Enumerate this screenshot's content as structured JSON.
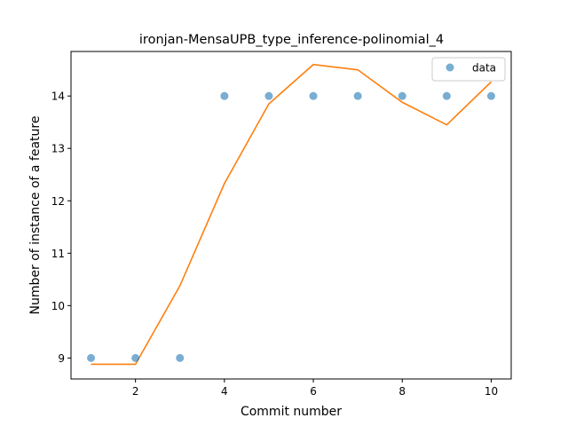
{
  "chart_data": {
    "type": "scatter",
    "title": "ironjan-MensaUPB_type_inference-polinomial_4",
    "xlabel": "Commit number",
    "ylabel": "Number of instance of a feature",
    "xlim": [
      0.55,
      10.45
    ],
    "ylim": [
      8.6,
      14.85
    ],
    "xticks": [
      2,
      4,
      6,
      8,
      10
    ],
    "yticks": [
      9,
      10,
      11,
      12,
      13,
      14
    ],
    "grid": false,
    "legend": "top-right",
    "series": [
      {
        "name": "data",
        "kind": "scatter",
        "color": "#1f77b4",
        "x": [
          1,
          2,
          3,
          4,
          5,
          6,
          7,
          8,
          9,
          10
        ],
        "y": [
          9,
          9,
          9,
          14,
          14,
          14,
          14,
          14,
          14,
          14
        ]
      },
      {
        "kind": "line",
        "color": "#ff7f0e",
        "x": [
          1,
          2,
          3,
          4,
          5,
          6,
          7,
          8,
          9,
          10
        ],
        "y": [
          8.88,
          8.88,
          10.38,
          12.33,
          13.85,
          14.6,
          14.5,
          13.88,
          13.45,
          14.27
        ]
      }
    ]
  }
}
